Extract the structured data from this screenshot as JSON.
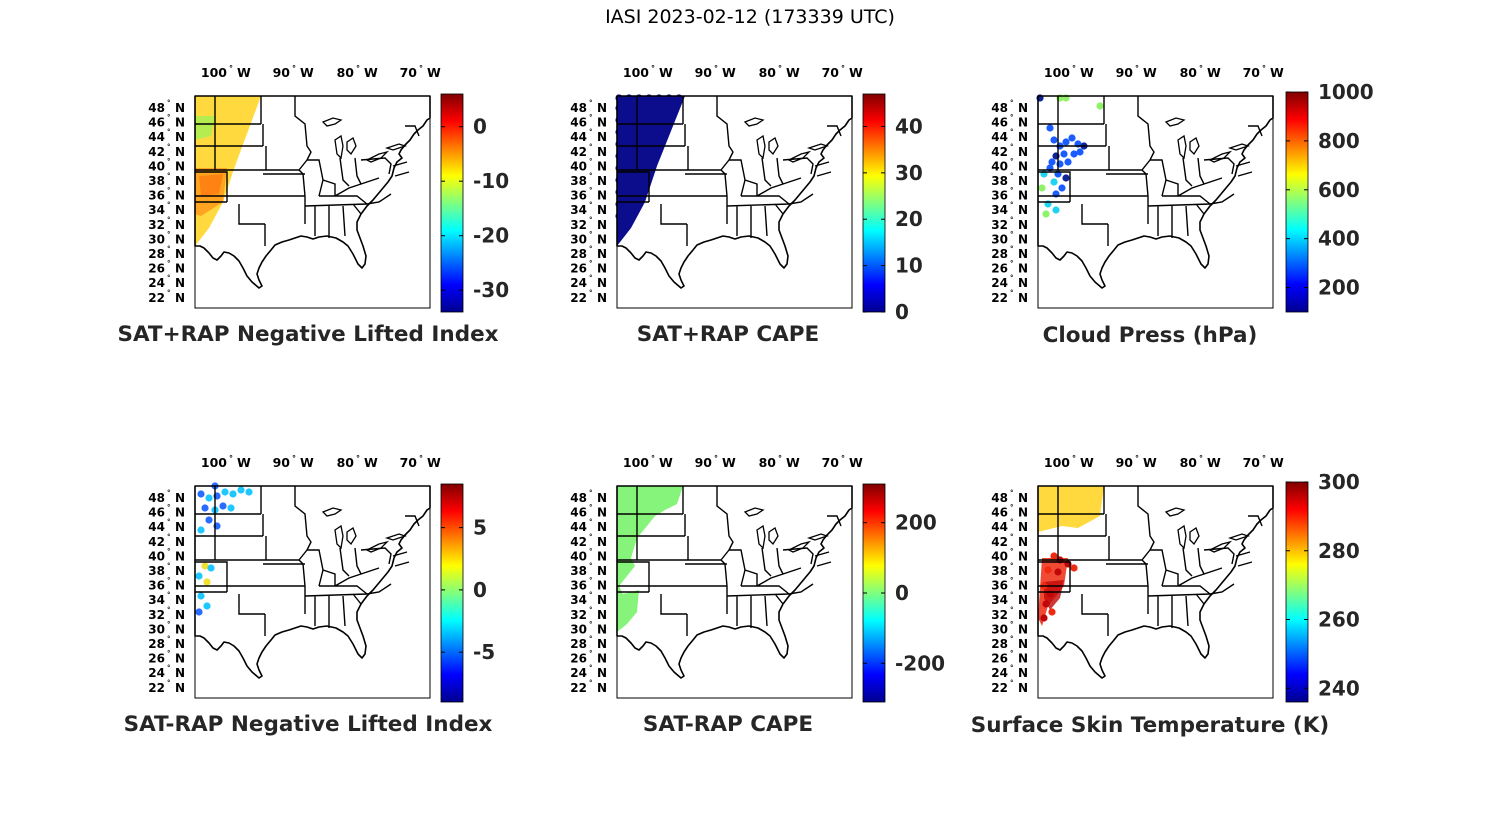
{
  "page": {
    "title": "IASI 2023-02-12 (173339 UTC)"
  },
  "map": {
    "lon_ticks": [
      "100",
      "90",
      "80",
      "70"
    ],
    "lon_hemisphere": "W",
    "lat_ticks": [
      "48",
      "46",
      "44",
      "42",
      "40",
      "38",
      "36",
      "34",
      "32",
      "30",
      "28",
      "26",
      "24",
      "22"
    ],
    "lat_hemisphere": "N",
    "degree_symbol": "°"
  },
  "panels": [
    {
      "title": "SAT+RAP Negative Lifted Index",
      "colorbar": {
        "ticks": [
          "0",
          "-10",
          "-20",
          "-30"
        ],
        "min": -34,
        "max": 6
      },
      "overlay_colors": [
        "#ffd21c",
        "#ff9a1c",
        "#9cf255",
        "#ff7a10"
      ]
    },
    {
      "title": "SAT+RAP CAPE",
      "colorbar": {
        "ticks": [
          "40",
          "30",
          "20",
          "10",
          "0"
        ],
        "min": 0,
        "max": 47
      },
      "overlay_colors": [
        "#0b0d8c"
      ]
    },
    {
      "title": "Cloud Press (hPa)",
      "colorbar": {
        "ticks": [
          "1000",
          "800",
          "600",
          "400",
          "200"
        ],
        "min": 100,
        "max": 1000
      },
      "overlay_colors": [
        "#1a5cff",
        "#10249a",
        "#21d3f0",
        "#8ff268"
      ]
    },
    {
      "title": "SAT-RAP Negative Lifted Index",
      "colorbar": {
        "ticks": [
          "5",
          "0",
          "-5"
        ],
        "min": -9,
        "max": 8.5
      },
      "overlay_colors": [
        "#2a6cff",
        "#1ec8ff",
        "#f0e030",
        "#9cf255"
      ]
    },
    {
      "title": "SAT-RAP CAPE",
      "colorbar": {
        "ticks": [
          "200",
          "0",
          "-200"
        ],
        "min": -310,
        "max": 310
      },
      "overlay_colors": [
        "#86f47a"
      ]
    },
    {
      "title": "Surface Skin Temperature (K)",
      "colorbar": {
        "ticks": [
          "300",
          "280",
          "260",
          "240"
        ],
        "min": 236,
        "max": 300
      },
      "overlay_colors": [
        "#ffd21c",
        "#ff9a1c",
        "#ee2a10",
        "#c00808"
      ]
    }
  ]
}
